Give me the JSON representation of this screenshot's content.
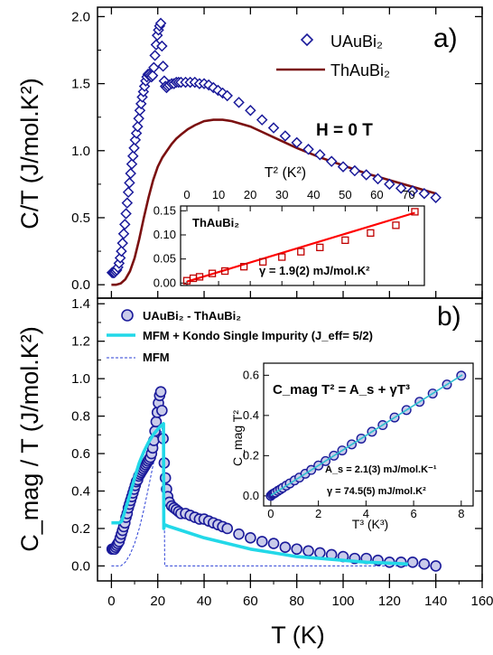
{
  "chart_data": [
    {
      "id": "panel_a",
      "panel_label": "a)",
      "type": "scatter",
      "ylabel": "C/T (J/mol.K²)",
      "ylim": [
        -0.1,
        2.07
      ],
      "xlim": [
        -6,
        160
      ],
      "yticks": [
        "0.0",
        "0.5",
        "1.0",
        "1.5",
        "2.0"
      ],
      "annotation": "H = 0 T",
      "legend": [
        {
          "label": "UAuBi₂",
          "marker": "diamond"
        },
        {
          "label": "ThAuBi₂",
          "marker": "line"
        }
      ],
      "series": [
        {
          "name": "UAuBi₂",
          "color": "#1a1a9a",
          "x": [
            0.3,
            0.8,
            1.3,
            1.8,
            2.3,
            2.8,
            3.3,
            3.8,
            4.3,
            4.8,
            5.3,
            5.8,
            6.3,
            6.8,
            7.3,
            7.8,
            8.3,
            8.8,
            9.3,
            9.8,
            10.3,
            10.8,
            11.3,
            11.8,
            12.3,
            12.8,
            13.3,
            13.8,
            14.3,
            14.8,
            15.3,
            15.8,
            16.3,
            16.8,
            17.3,
            17.8,
            18.3,
            18.8,
            19.3,
            19.8,
            20.3,
            20.8,
            21.3,
            21.8,
            22.3,
            22.8,
            23.3,
            23.8,
            24.3,
            25,
            26,
            27,
            28,
            29,
            30,
            32,
            34,
            36,
            38,
            40,
            42,
            44,
            46,
            48,
            50,
            55,
            60,
            65,
            70,
            75,
            80,
            85,
            90,
            95,
            100,
            105,
            110,
            115,
            120,
            125,
            130,
            135,
            140
          ],
          "y": [
            0.09,
            0.09,
            0.09,
            0.1,
            0.11,
            0.13,
            0.16,
            0.2,
            0.25,
            0.31,
            0.38,
            0.45,
            0.53,
            0.61,
            0.69,
            0.76,
            0.83,
            0.9,
            0.96,
            1.02,
            1.08,
            1.13,
            1.18,
            1.24,
            1.3,
            1.35,
            1.4,
            1.44,
            1.48,
            1.52,
            1.55,
            1.57,
            1.57,
            1.56,
            1.55,
            1.56,
            1.62,
            1.71,
            1.79,
            1.86,
            1.9,
            1.93,
            1.95,
            1.78,
            1.63,
            1.52,
            1.48,
            1.47,
            1.48,
            1.49,
            1.5,
            1.5,
            1.51,
            1.51,
            1.51,
            1.51,
            1.51,
            1.51,
            1.5,
            1.5,
            1.49,
            1.47,
            1.45,
            1.43,
            1.41,
            1.36,
            1.3,
            1.23,
            1.17,
            1.11,
            1.06,
            1.01,
            0.97,
            0.92,
            0.88,
            0.85,
            0.82,
            0.79,
            0.75,
            0.72,
            0.7,
            0.68,
            0.65
          ]
        },
        {
          "name": "ThAuBi₂",
          "color": "#7b1010",
          "x": [
            0,
            2,
            4,
            6,
            8,
            10,
            12,
            14,
            16,
            18,
            20,
            22,
            24,
            26,
            28,
            30,
            33,
            36,
            40,
            44,
            48,
            52,
            56,
            60,
            65,
            70,
            80,
            90,
            100,
            110,
            120,
            130,
            140
          ],
          "y": [
            0,
            0,
            0.01,
            0.04,
            0.1,
            0.2,
            0.34,
            0.5,
            0.65,
            0.78,
            0.88,
            0.95,
            1.0,
            1.05,
            1.09,
            1.12,
            1.16,
            1.19,
            1.22,
            1.23,
            1.23,
            1.22,
            1.2,
            1.18,
            1.14,
            1.1,
            1.02,
            0.95,
            0.89,
            0.83,
            0.78,
            0.73,
            0.68
          ]
        }
      ]
    },
    {
      "id": "panel_a_inset",
      "type": "line",
      "title": "ThAuBi₂",
      "xlabel": "T² (K²)",
      "xlim": [
        -2,
        75
      ],
      "ylim": [
        -0.005,
        0.16
      ],
      "xticks": [
        "0",
        "10",
        "20",
        "30",
        "40",
        "50",
        "60",
        "70"
      ],
      "yticks": [
        "0.00",
        "0.05",
        "0.10",
        "0.15"
      ],
      "annotation": "γ = 1.9(2) mJ/mol.K²",
      "series": [
        {
          "name": "data",
          "color": "#c00000",
          "x": [
            0,
            2,
            4,
            8,
            12,
            18,
            24,
            30,
            36,
            42,
            50,
            58,
            66,
            72
          ],
          "y": [
            0.005,
            0.01,
            0.013,
            0.02,
            0.025,
            0.034,
            0.044,
            0.054,
            0.065,
            0.074,
            0.089,
            0.104,
            0.12,
            0.148
          ]
        },
        {
          "name": "fit",
          "color": "#ff0000",
          "x": [
            0,
            72
          ],
          "y": [
            0.003,
            0.146
          ]
        }
      ]
    },
    {
      "id": "panel_b",
      "panel_label": "b)",
      "type": "scatter",
      "xlabel": "T (K)",
      "ylabel": "C_mag / T (J/mol.K²)",
      "xlim": [
        -6,
        160
      ],
      "ylim": [
        -0.08,
        1.43
      ],
      "xticks": [
        "0",
        "20",
        "40",
        "60",
        "80",
        "100",
        "120",
        "140",
        "160"
      ],
      "yticks": [
        "0.0",
        "0.2",
        "0.4",
        "0.6",
        "0.8",
        "1.0",
        "1.2",
        "1.4"
      ],
      "legend": [
        {
          "label": "UAuBi₂ - ThAuBi₂",
          "marker": "circle"
        },
        {
          "label": "MFM + Kondo Single Impurity (J_eff= 5/2)",
          "marker": "thick-line"
        },
        {
          "label": "MFM",
          "marker": "dashed-line"
        }
      ],
      "series": [
        {
          "name": "UAuBi₂ - ThAuBi₂",
          "color": "#1a1a9a",
          "x": [
            0.3,
            0.8,
            1.3,
            1.8,
            2.3,
            2.8,
            3.3,
            3.8,
            4.3,
            4.8,
            5.3,
            5.8,
            6.3,
            6.8,
            7.3,
            7.8,
            8.3,
            8.8,
            9.3,
            9.8,
            10.3,
            10.8,
            11.3,
            11.8,
            12.3,
            12.8,
            13.3,
            13.8,
            14.3,
            14.8,
            15.3,
            15.8,
            16.3,
            16.8,
            17.3,
            17.8,
            18.3,
            18.8,
            19.3,
            19.8,
            20.3,
            20.8,
            21.3,
            21.8,
            22.3,
            22.8,
            23.3,
            23.8,
            24.3,
            25,
            26,
            27,
            28,
            29,
            30,
            32,
            34,
            36,
            38,
            40,
            42,
            44,
            46,
            48,
            50,
            55,
            60,
            65,
            70,
            75,
            80,
            85,
            90,
            95,
            100,
            105,
            110,
            115,
            120,
            125,
            130,
            135,
            140
          ],
          "y": [
            0.09,
            0.09,
            0.09,
            0.1,
            0.11,
            0.12,
            0.13,
            0.15,
            0.17,
            0.19,
            0.21,
            0.23,
            0.26,
            0.28,
            0.31,
            0.33,
            0.35,
            0.37,
            0.39,
            0.41,
            0.43,
            0.45,
            0.46,
            0.48,
            0.49,
            0.5,
            0.51,
            0.52,
            0.53,
            0.54,
            0.55,
            0.56,
            0.57,
            0.58,
            0.6,
            0.63,
            0.67,
            0.72,
            0.77,
            0.82,
            0.87,
            0.91,
            0.93,
            0.83,
            0.68,
            0.55,
            0.47,
            0.41,
            0.37,
            0.34,
            0.32,
            0.31,
            0.3,
            0.29,
            0.28,
            0.28,
            0.27,
            0.26,
            0.25,
            0.25,
            0.24,
            0.23,
            0.22,
            0.21,
            0.2,
            0.17,
            0.15,
            0.13,
            0.12,
            0.1,
            0.09,
            0.08,
            0.07,
            0.06,
            0.05,
            0.04,
            0.04,
            0.03,
            0.02,
            0.02,
            0.02,
            0.01,
            0.0
          ]
        },
        {
          "name": "MFM + Kondo Single Impurity (J_eff= 5/2)",
          "color": "#22d8e8",
          "x": [
            0,
            2,
            3.5,
            4.5,
            6,
            8,
            10,
            12,
            14,
            16,
            18,
            20,
            21.5,
            22.5,
            22.6,
            23,
            25,
            30,
            40,
            50,
            60,
            70,
            80,
            90,
            100,
            110,
            120,
            128
          ],
          "y": [
            0.23,
            0.23,
            0.23,
            0.24,
            0.3,
            0.38,
            0.47,
            0.55,
            0.61,
            0.66,
            0.7,
            0.73,
            0.75,
            0.76,
            0.2,
            0.22,
            0.21,
            0.19,
            0.15,
            0.12,
            0.09,
            0.07,
            0.05,
            0.04,
            0.03,
            0.02,
            0.015,
            0.01
          ]
        },
        {
          "name": "MFM",
          "color": "#2a3fd6",
          "x": [
            0,
            4,
            6,
            8,
            10,
            12,
            14,
            16,
            18,
            20,
            22,
            22.6,
            23,
            30,
            60,
            100,
            140
          ],
          "y": [
            0,
            0,
            0.02,
            0.06,
            0.12,
            0.2,
            0.3,
            0.42,
            0.54,
            0.65,
            0.74,
            0.76,
            0.0,
            0.0,
            0.0,
            0.0,
            0.0
          ]
        }
      ]
    },
    {
      "id": "panel_b_inset",
      "type": "scatter",
      "xlabel": "T³ (K³)",
      "ylabel": "C_mag T²",
      "xlim": [
        -0.3,
        8.5
      ],
      "ylim": [
        -0.05,
        0.66
      ],
      "xticks": [
        "0",
        "2",
        "4",
        "6",
        "8"
      ],
      "yticks": [
        "0.0",
        "0.2",
        "0.4",
        "0.6"
      ],
      "equation": "C_mag T² = A_s + γT³",
      "annotation_as": "A_s = 2.1(3) mJ/mol.K⁻¹",
      "annotation_gamma": "γ = 74.5(5) mJ/mol.K²",
      "series": [
        {
          "name": "data",
          "color": "#1a1a9a",
          "x": [
            0.0,
            0.05,
            0.1,
            0.15,
            0.2,
            0.3,
            0.4,
            0.5,
            0.65,
            0.8,
            1.0,
            1.2,
            1.45,
            1.7,
            2.0,
            2.3,
            2.65,
            3.0,
            3.4,
            3.8,
            4.25,
            4.7,
            5.2,
            5.7,
            6.25,
            6.8,
            7.4,
            8.0
          ],
          "y": [
            0.0,
            0.006,
            0.01,
            0.013,
            0.017,
            0.025,
            0.032,
            0.04,
            0.051,
            0.062,
            0.077,
            0.091,
            0.11,
            0.129,
            0.151,
            0.173,
            0.2,
            0.226,
            0.256,
            0.285,
            0.319,
            0.352,
            0.39,
            0.427,
            0.468,
            0.509,
            0.554,
            0.598
          ]
        },
        {
          "name": "fit",
          "color": "#30c0d0",
          "x": [
            0,
            8.05
          ],
          "y": [
            0.002,
            0.602
          ]
        }
      ]
    }
  ]
}
